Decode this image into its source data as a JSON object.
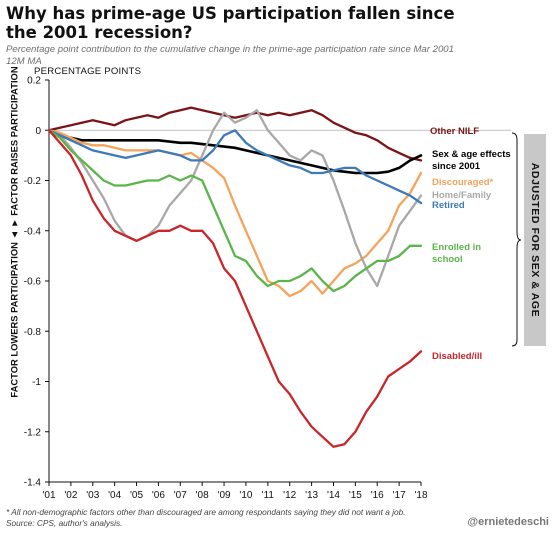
{
  "header": {
    "title": "Why has prime-age US participation fallen since the 2001 recession?",
    "subtitle": "Percentage point contribution to the cumulative change in the prime-age participation rate since Mar 2001",
    "note": "12M MA"
  },
  "side_box": {
    "text": "ADJUSTED FOR SEX & AGE"
  },
  "footer": {
    "footnote_1": "* All non-demographic factors other than discouraged are among respondants saying they did not want a job.",
    "footnote_2": "Source: CPS, author's analysis.",
    "handle": "@ernietedeschi"
  },
  "chart_data": {
    "type": "line",
    "units_label": "PERCENTAGE POINTS",
    "ylabel": "FACTOR LOWERS PARTICIPATION ◄ ► FACTOR RAISES PARTICIPATION",
    "xlim": [
      2001,
      2018
    ],
    "ylim": [
      -1.4,
      0.2
    ],
    "yticks": [
      0.2,
      0,
      -0.2,
      -0.4,
      -0.6,
      -0.8,
      -1,
      -1.2,
      -1.4
    ],
    "ytick_labels": [
      "0.2",
      "0",
      "-0.2",
      "-0.4",
      "-0.6",
      "-0.8",
      "-1",
      "-1.2",
      "-1.4"
    ],
    "xticks": [
      2001,
      2002,
      2003,
      2004,
      2005,
      2006,
      2007,
      2008,
      2009,
      2010,
      2011,
      2012,
      2013,
      2014,
      2015,
      2016,
      2017,
      2018
    ],
    "xtick_labels": [
      "'01",
      "'02",
      "'03",
      "'04",
      "'05",
      "'06",
      "'07",
      "'08",
      "'09",
      "'10",
      "'11",
      "'12",
      "'13",
      "'14",
      "'15",
      "'16",
      "'17",
      "'18"
    ],
    "grid": false,
    "series": [
      {
        "name": "Other NILF",
        "color": "#7b1416",
        "x": [
          2001,
          2001.5,
          2002,
          2002.5,
          2003,
          2003.5,
          2004,
          2004.5,
          2005,
          2005.5,
          2006,
          2006.5,
          2007,
          2007.5,
          2008,
          2008.5,
          2009,
          2009.5,
          2010,
          2010.5,
          2011,
          2011.5,
          2012,
          2012.5,
          2013,
          2013.5,
          2014,
          2014.5,
          2015,
          2015.5,
          2016,
          2016.5,
          2017,
          2017.5,
          2018
        ],
        "values": [
          0,
          0.01,
          0.02,
          0.03,
          0.04,
          0.03,
          0.02,
          0.04,
          0.05,
          0.06,
          0.05,
          0.07,
          0.08,
          0.09,
          0.08,
          0.07,
          0.06,
          0.05,
          0.06,
          0.07,
          0.06,
          0.07,
          0.06,
          0.07,
          0.08,
          0.06,
          0.03,
          0.01,
          -0.01,
          -0.02,
          -0.04,
          -0.07,
          -0.09,
          -0.11,
          -0.12
        ]
      },
      {
        "name": "Sex & age effects since 2001",
        "color": "#000000",
        "x": [
          2001,
          2001.5,
          2002,
          2002.5,
          2003,
          2003.5,
          2004,
          2004.5,
          2005,
          2005.5,
          2006,
          2006.5,
          2007,
          2007.5,
          2008,
          2008.5,
          2009,
          2009.5,
          2010,
          2010.5,
          2011,
          2011.5,
          2012,
          2012.5,
          2013,
          2013.5,
          2014,
          2014.5,
          2015,
          2015.5,
          2016,
          2016.5,
          2017,
          2017.5,
          2018
        ],
        "values": [
          0,
          -0.02,
          -0.03,
          -0.04,
          -0.04,
          -0.04,
          -0.04,
          -0.04,
          -0.04,
          -0.04,
          -0.04,
          -0.045,
          -0.05,
          -0.05,
          -0.055,
          -0.06,
          -0.065,
          -0.07,
          -0.08,
          -0.09,
          -0.1,
          -0.11,
          -0.12,
          -0.13,
          -0.14,
          -0.15,
          -0.16,
          -0.165,
          -0.17,
          -0.17,
          -0.17,
          -0.165,
          -0.15,
          -0.12,
          -0.1
        ]
      },
      {
        "name": "Discouraged*",
        "color": "#f5a35b",
        "x": [
          2001,
          2001.5,
          2002,
          2002.5,
          2003,
          2003.5,
          2004,
          2004.5,
          2005,
          2005.5,
          2006,
          2006.5,
          2007,
          2007.5,
          2008,
          2008.5,
          2009,
          2009.5,
          2010,
          2010.5,
          2011,
          2011.5,
          2012,
          2012.5,
          2013,
          2013.5,
          2014,
          2014.5,
          2015,
          2015.5,
          2016,
          2016.5,
          2017,
          2017.5,
          2018
        ],
        "values": [
          0,
          -0.01,
          -0.03,
          -0.05,
          -0.06,
          -0.06,
          -0.07,
          -0.08,
          -0.08,
          -0.08,
          -0.08,
          -0.09,
          -0.1,
          -0.09,
          -0.12,
          -0.15,
          -0.19,
          -0.3,
          -0.4,
          -0.5,
          -0.6,
          -0.62,
          -0.66,
          -0.64,
          -0.6,
          -0.65,
          -0.6,
          -0.55,
          -0.53,
          -0.5,
          -0.45,
          -0.4,
          -0.3,
          -0.25,
          -0.17
        ]
      },
      {
        "name": "Home/Family",
        "color": "#a8a8a8",
        "x": [
          2001,
          2001.5,
          2002,
          2002.5,
          2003,
          2003.5,
          2004,
          2004.5,
          2005,
          2005.5,
          2006,
          2006.5,
          2007,
          2007.5,
          2008,
          2008.5,
          2009,
          2009.5,
          2010,
          2010.5,
          2011,
          2011.5,
          2012,
          2012.5,
          2013,
          2013.5,
          2014,
          2014.5,
          2015,
          2015.5,
          2016,
          2016.5,
          2017,
          2017.5,
          2018
        ],
        "values": [
          0,
          -0.02,
          -0.07,
          -0.13,
          -0.2,
          -0.27,
          -0.36,
          -0.42,
          -0.44,
          -0.42,
          -0.38,
          -0.3,
          -0.25,
          -0.2,
          -0.1,
          0.0,
          0.07,
          0.03,
          0.05,
          0.08,
          0.0,
          -0.05,
          -0.1,
          -0.12,
          -0.08,
          -0.1,
          -0.2,
          -0.32,
          -0.45,
          -0.55,
          -0.62,
          -0.5,
          -0.38,
          -0.32,
          -0.26
        ]
      },
      {
        "name": "Retired",
        "color": "#3d7ab8",
        "x": [
          2001,
          2001.5,
          2002,
          2002.5,
          2003,
          2003.5,
          2004,
          2004.5,
          2005,
          2005.5,
          2006,
          2006.5,
          2007,
          2007.5,
          2008,
          2008.5,
          2009,
          2009.5,
          2010,
          2010.5,
          2011,
          2011.5,
          2012,
          2012.5,
          2013,
          2013.5,
          2014,
          2014.5,
          2015,
          2015.5,
          2016,
          2016.5,
          2017,
          2017.5,
          2018
        ],
        "values": [
          0,
          -0.02,
          -0.04,
          -0.06,
          -0.08,
          -0.09,
          -0.1,
          -0.11,
          -0.1,
          -0.09,
          -0.08,
          -0.09,
          -0.1,
          -0.12,
          -0.12,
          -0.08,
          -0.02,
          0.0,
          -0.05,
          -0.08,
          -0.1,
          -0.12,
          -0.14,
          -0.15,
          -0.17,
          -0.17,
          -0.16,
          -0.15,
          -0.15,
          -0.18,
          -0.2,
          -0.22,
          -0.24,
          -0.26,
          -0.29
        ]
      },
      {
        "name": "Enrolled in school",
        "color": "#5bb54a",
        "x": [
          2001,
          2001.5,
          2002,
          2002.5,
          2003,
          2003.5,
          2004,
          2004.5,
          2005,
          2005.5,
          2006,
          2006.5,
          2007,
          2007.5,
          2008,
          2008.5,
          2009,
          2009.5,
          2010,
          2010.5,
          2011,
          2011.5,
          2012,
          2012.5,
          2013,
          2013.5,
          2014,
          2014.5,
          2015,
          2015.5,
          2016,
          2016.5,
          2017,
          2017.5,
          2018
        ],
        "values": [
          0,
          -0.03,
          -0.08,
          -0.12,
          -0.16,
          -0.2,
          -0.22,
          -0.22,
          -0.21,
          -0.2,
          -0.2,
          -0.18,
          -0.2,
          -0.18,
          -0.2,
          -0.3,
          -0.4,
          -0.5,
          -0.52,
          -0.58,
          -0.62,
          -0.6,
          -0.6,
          -0.58,
          -0.55,
          -0.6,
          -0.64,
          -0.62,
          -0.58,
          -0.55,
          -0.52,
          -0.52,
          -0.5,
          -0.46,
          -0.46
        ]
      },
      {
        "name": "Disabled/ill",
        "color": "#c8262a",
        "x": [
          2001,
          2001.5,
          2002,
          2002.5,
          2003,
          2003.5,
          2004,
          2004.5,
          2005,
          2005.5,
          2006,
          2006.5,
          2007,
          2007.5,
          2008,
          2008.5,
          2009,
          2009.5,
          2010,
          2010.5,
          2011,
          2011.5,
          2012,
          2012.5,
          2013,
          2013.5,
          2014,
          2014.5,
          2015,
          2015.5,
          2016,
          2016.5,
          2017,
          2017.5,
          2018
        ],
        "values": [
          0,
          -0.05,
          -0.1,
          -0.18,
          -0.28,
          -0.35,
          -0.4,
          -0.42,
          -0.44,
          -0.42,
          -0.4,
          -0.4,
          -0.38,
          -0.4,
          -0.4,
          -0.45,
          -0.55,
          -0.6,
          -0.7,
          -0.8,
          -0.9,
          -1.0,
          -1.05,
          -1.12,
          -1.18,
          -1.22,
          -1.26,
          -1.25,
          -1.2,
          -1.12,
          -1.06,
          -0.98,
          -0.95,
          -0.92,
          -0.88
        ]
      }
    ],
    "line_labels": [
      {
        "text": "Other NILF",
        "color": "#7b1416",
        "series": 0
      },
      {
        "text": "Sex & age effects",
        "color": "#000000",
        "series": 1
      },
      {
        "text": "since 2001",
        "color": "#000000",
        "series": 1
      },
      {
        "text": "Discouraged*",
        "color": "#f5a35b",
        "series": 2
      },
      {
        "text": "Home/Family",
        "color": "#a8a8a8",
        "series": 3
      },
      {
        "text": "Retired",
        "color": "#3d7ab8",
        "series": 4
      },
      {
        "text": "Enrolled in",
        "color": "#5bb54a",
        "series": 5
      },
      {
        "text": "school",
        "color": "#5bb54a",
        "series": 5
      },
      {
        "text": "Disabled/ill",
        "color": "#c8262a",
        "series": 6
      }
    ]
  }
}
